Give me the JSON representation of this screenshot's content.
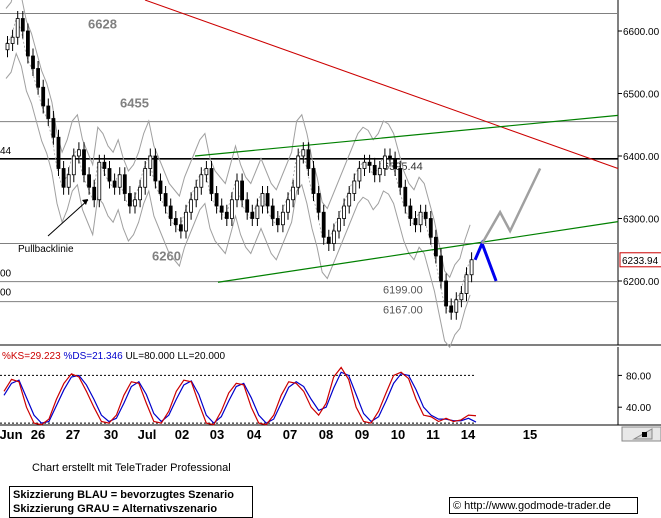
{
  "chart_data": {
    "type": "candlestick",
    "main_panel": {
      "y_ticks": [
        6600,
        6500,
        6400,
        6300,
        6200
      ],
      "y_tick_labels": [
        "6600.00",
        "6500.00",
        "6400.00",
        "6300.00",
        "6200.00"
      ],
      "last_price_label": "6233.94",
      "levels": [
        {
          "value": 6628,
          "label": "6628",
          "color": "#808080"
        },
        {
          "value": 6455,
          "label": "6455",
          "color": "#808080"
        },
        {
          "value": 6395.44,
          "label": "6395.44",
          "left_label": "44",
          "color": "#000000"
        },
        {
          "value": 6260,
          "label": "6260",
          "color": "#808080"
        },
        {
          "value": 6199,
          "label": "6199.00",
          "left_label": "00",
          "color": "#808080"
        },
        {
          "value": 6167,
          "label": "6167.00",
          "left_label": "00",
          "color": "#808080"
        }
      ],
      "annotation": "Pullbacklinie",
      "closes": [
        6580,
        6590,
        6620,
        6600,
        6560,
        6540,
        6510,
        6480,
        6460,
        6430,
        6380,
        6350,
        6370,
        6400,
        6410,
        6370,
        6350,
        6330,
        6390,
        6380,
        6360,
        6350,
        6370,
        6340,
        6320,
        6330,
        6350,
        6380,
        6400,
        6360,
        6340,
        6320,
        6300,
        6290,
        6280,
        6310,
        6330,
        6350,
        6370,
        6380,
        6340,
        6320,
        6310,
        6300,
        6330,
        6360,
        6330,
        6310,
        6300,
        6320,
        6340,
        6320,
        6300,
        6290,
        6310,
        6330,
        6350,
        6400,
        6410,
        6380,
        6340,
        6310,
        6270,
        6260,
        6280,
        6300,
        6320,
        6340,
        6360,
        6380,
        6390,
        6385,
        6370,
        6380,
        6400,
        6395,
        6380,
        6350,
        6320,
        6300,
        6290,
        6310,
        6300,
        6270,
        6240,
        6200,
        6160,
        6150,
        6170,
        6180,
        6210,
        6233.94
      ],
      "scenario_blue": [
        6260,
        6200
      ],
      "scenario_grey": [
        6270,
        6310,
        6280,
        6380
      ]
    },
    "oscillator_panel": {
      "legend": [
        {
          "text": "%KS=29.223",
          "color": "#cc0000"
        },
        {
          "text": "%DS=21.346",
          "color": "#0000cc"
        },
        {
          "text": "UL=80.000",
          "color": "#000000"
        },
        {
          "text": "LL=20.000",
          "color": "#000000"
        }
      ],
      "y_ticks": [
        80,
        40
      ],
      "y_tick_labels": [
        "80.00",
        "40.00"
      ],
      "ul": 80,
      "ll": 20,
      "ks_values": [
        60,
        75,
        72,
        40,
        20,
        18,
        25,
        50,
        70,
        82,
        78,
        60,
        40,
        22,
        20,
        30,
        55,
        72,
        70,
        45,
        22,
        20,
        35,
        60,
        74,
        72,
        45,
        20,
        18,
        35,
        58,
        70,
        68,
        40,
        20,
        18,
        30,
        55,
        72,
        70,
        60,
        40,
        30,
        45,
        78,
        90,
        75,
        40,
        22,
        20,
        35,
        58,
        80,
        84,
        76,
        50,
        30,
        28,
        22,
        26,
        22,
        24,
        30,
        29.223
      ],
      "ds_values": [
        55,
        70,
        74,
        52,
        30,
        20,
        22,
        42,
        62,
        78,
        80,
        68,
        50,
        30,
        22,
        26,
        45,
        66,
        72,
        56,
        32,
        22,
        30,
        50,
        68,
        73,
        56,
        30,
        20,
        28,
        48,
        66,
        70,
        52,
        30,
        20,
        25,
        45,
        65,
        72,
        66,
        50,
        36,
        40,
        64,
        84,
        80,
        56,
        32,
        22,
        28,
        48,
        70,
        82,
        80,
        62,
        40,
        30,
        25,
        25,
        23,
        23,
        26,
        21.346
      ]
    },
    "x_tick_labels": [
      "Jun",
      "26",
      "27",
      "30",
      "Jul",
      "02",
      "03",
      "04",
      "07",
      "08",
      "09",
      "10",
      "11",
      "14",
      "15"
    ]
  },
  "credit": "Chart erstellt mit TeleTrader Professional",
  "legend_box": {
    "line1": "Skizzierung BLAU = bevorzugtes Szenario",
    "line2": "Skizzierung GRAU = Alternativszenario"
  },
  "url": {
    "symbol": "©",
    "text": "http://www.godmode-trader.de"
  },
  "colors": {
    "background": "#ffffff",
    "up_candle": "#ffffff",
    "down_candle": "#000000",
    "resistance_line": "#cc0000",
    "trend_lines": "#008000",
    "bollinger": "#a0a0a0",
    "scenario_blue": "#0000ee",
    "scenario_grey": "#a0a0a0",
    "price_tag": "#cc0000"
  }
}
